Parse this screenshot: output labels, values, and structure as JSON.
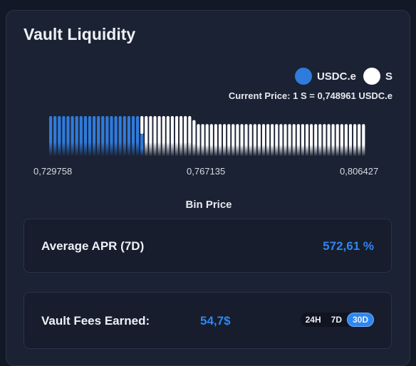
{
  "title": "Vault Liquidity",
  "legend": {
    "usdc_label": "USDC.e",
    "s_label": "S",
    "usdc_color": "#2f7bdc",
    "s_color": "#ffffff"
  },
  "current_price": "Current Price: 1 S = 0,748961 USDC.e",
  "chart_data": {
    "type": "bar",
    "xlabel": "Bin Price",
    "x_ticks": [
      "0,729758",
      "0,767135",
      "0,806427"
    ],
    "series": [
      {
        "name": "USDC.e",
        "values": [
          1,
          1,
          1,
          1,
          1,
          1,
          1,
          1,
          1,
          1,
          1,
          1,
          1,
          1,
          1,
          1,
          1,
          1,
          1,
          1,
          1,
          0.55
        ]
      },
      {
        "name": "S",
        "values": [
          0,
          0,
          0,
          0,
          0,
          0,
          0,
          0,
          0,
          0,
          0,
          0,
          0,
          0,
          0,
          0,
          0,
          0,
          0,
          0,
          0,
          0.45,
          1,
          1,
          1,
          1,
          1,
          1,
          1,
          1,
          1,
          1,
          1,
          0.9,
          0.8,
          0.8,
          0.8,
          0.8,
          0.8,
          0.8,
          0.8,
          0.8,
          0.8,
          0.8,
          0.8,
          0.8,
          0.8,
          0.8,
          0.8,
          0.8,
          0.8,
          0.8,
          0.8,
          0.8,
          0.8,
          0.8,
          0.8,
          0.8,
          0.8,
          0.8,
          0.8,
          0.8,
          0.8,
          0.8,
          0.8,
          0.8,
          0.8,
          0.8,
          0.8,
          0.8,
          0.8,
          0.8,
          0.8
        ]
      }
    ]
  },
  "apr": {
    "label": "Average APR (7D)",
    "value": "572,61 %"
  },
  "fees": {
    "label": "Vault Fees Earned:",
    "value": "54,7$",
    "ranges": [
      "24H",
      "7D",
      "30D"
    ],
    "active_range": "30D"
  }
}
